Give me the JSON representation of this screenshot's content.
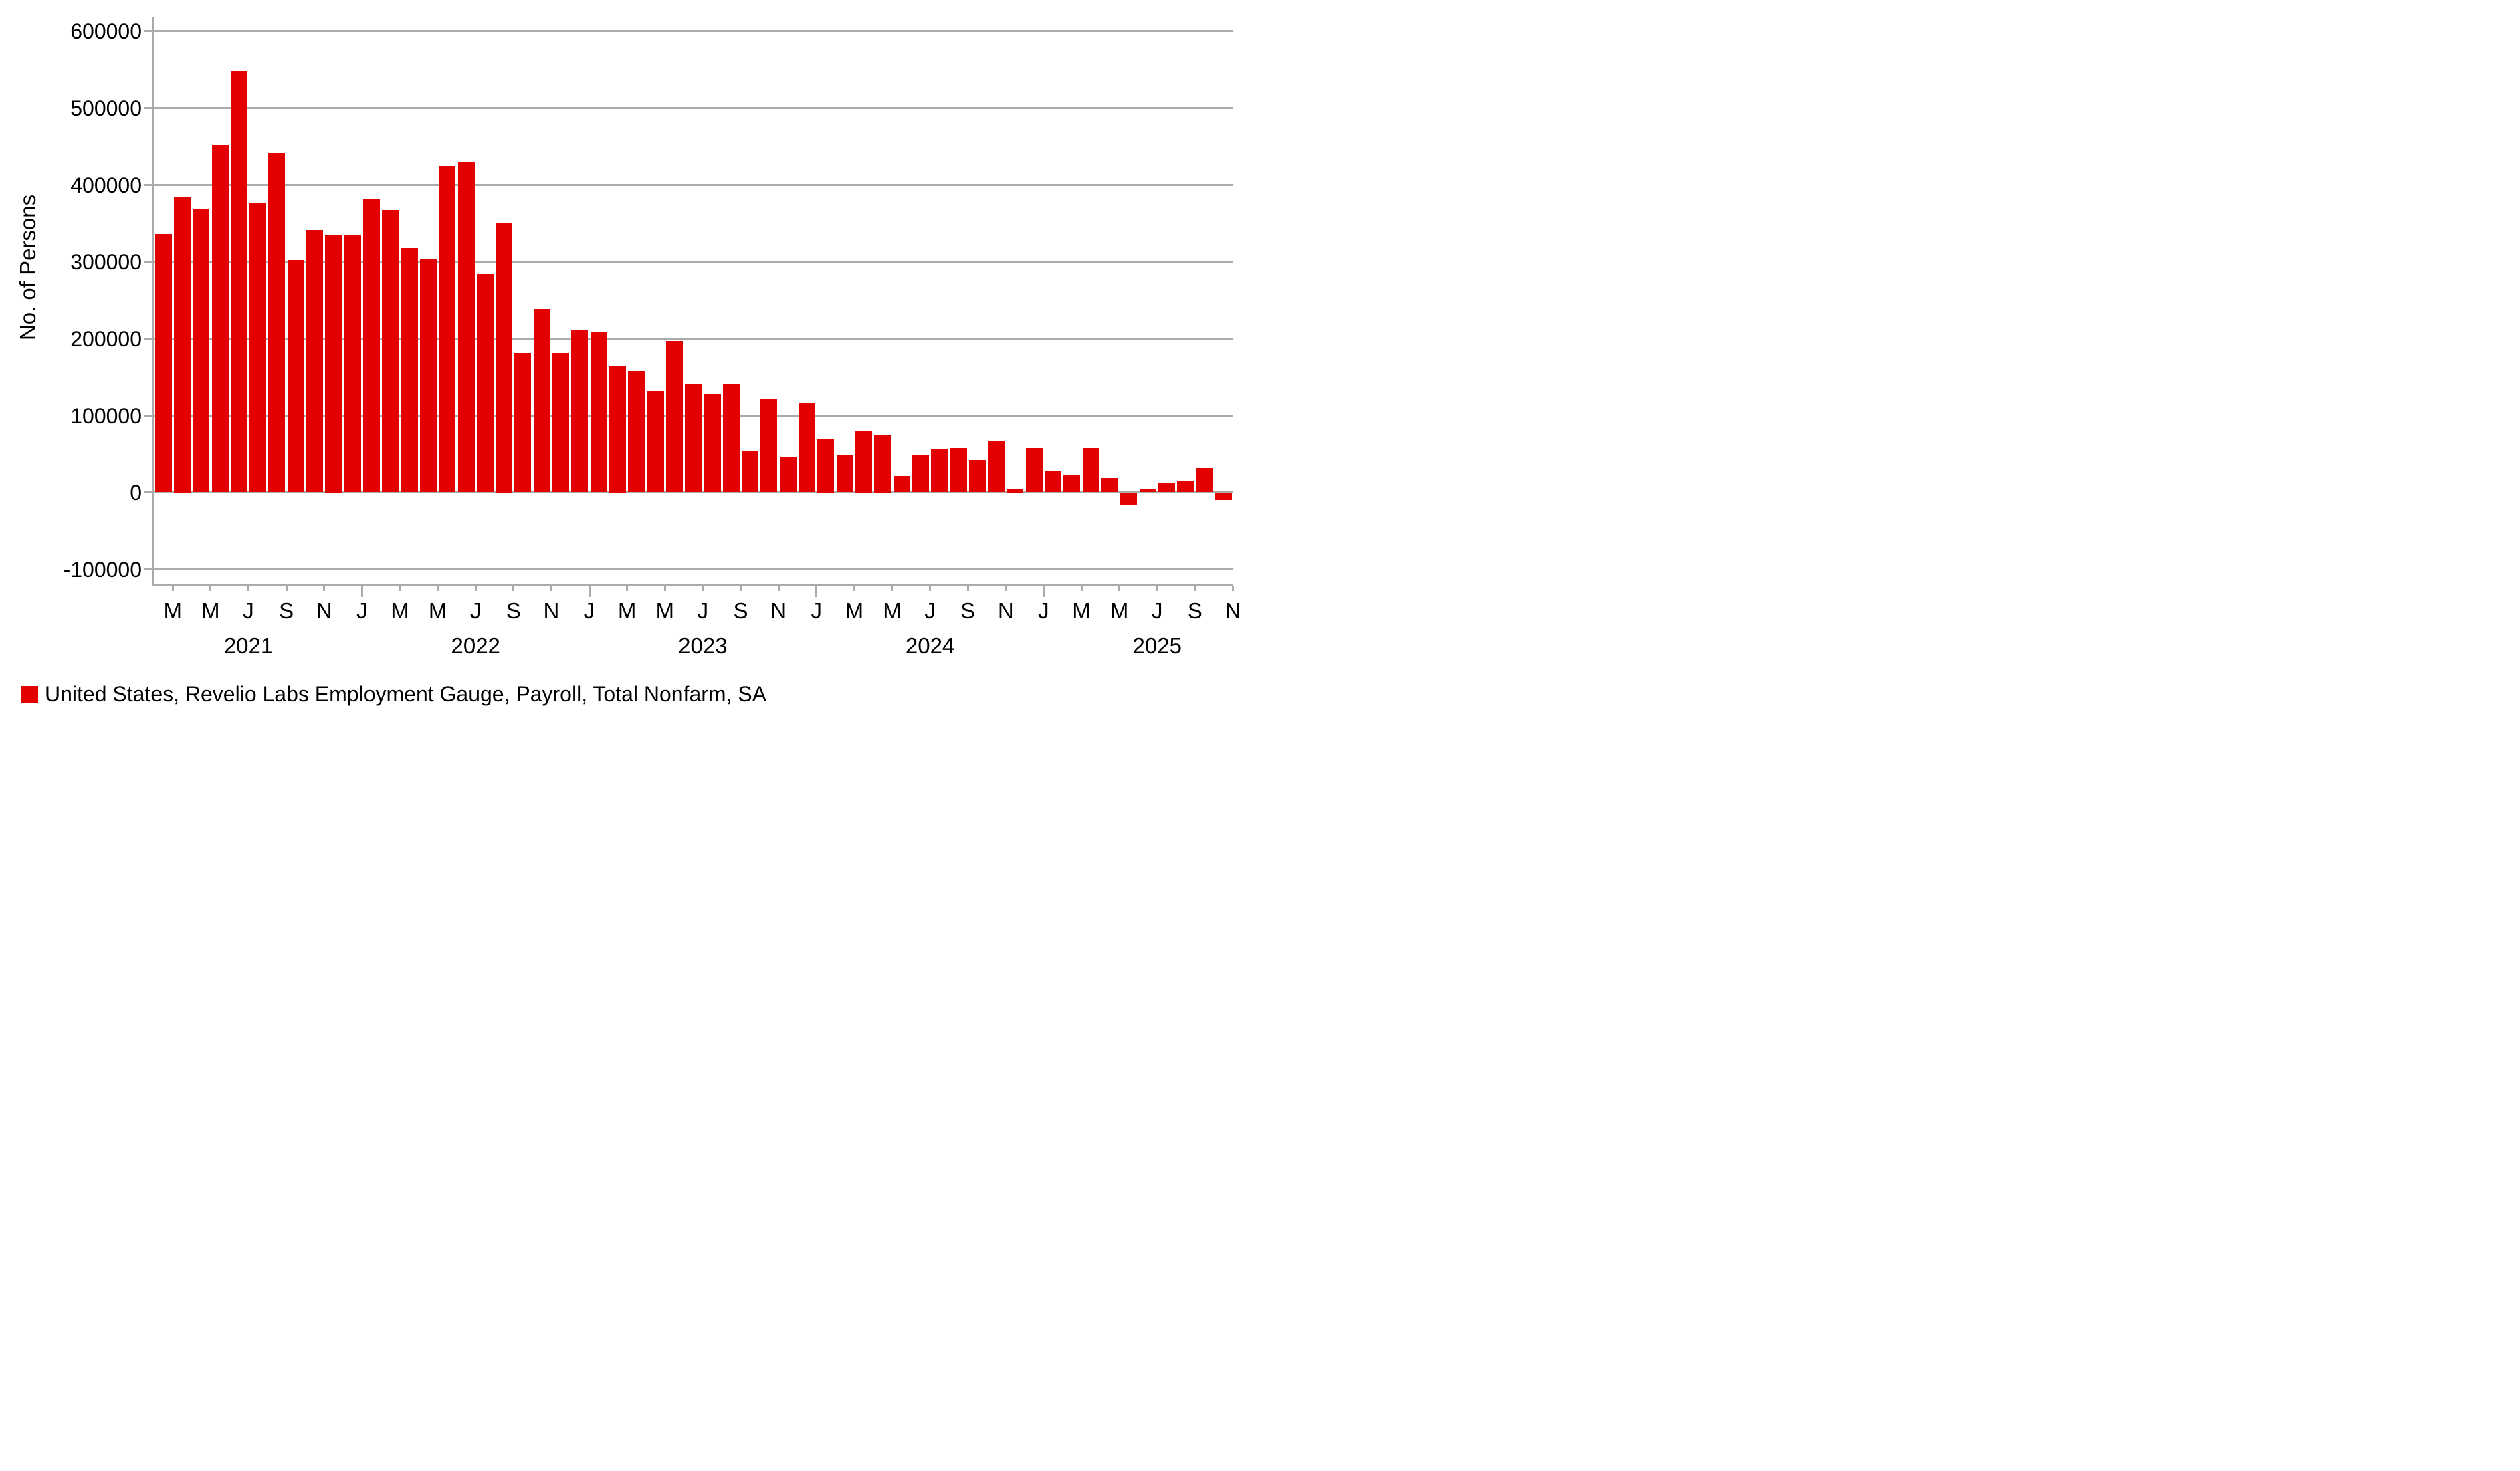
{
  "chart_data": {
    "type": "bar",
    "title": "",
    "ylabel": "No. of Persons",
    "series_name": "United States, Revelio Labs Employment Gauge, Payroll, Total Nonfarm, SA",
    "bar_color": "#e30000",
    "grid_color": "#ababab",
    "text_color": "#000000",
    "grid": true,
    "legend_position": "bottom-left",
    "ylim": [
      -100000,
      620000
    ],
    "yticks": [
      600000,
      500000,
      400000,
      300000,
      200000,
      100000,
      0,
      -100000
    ],
    "x": [
      "Feb 2021",
      "Mar 2021",
      "Apr 2021",
      "May 2021",
      "Jun 2021",
      "Jul 2021",
      "Aug 2021",
      "Sep 2021",
      "Oct 2021",
      "Nov 2021",
      "Dec 2021",
      "Jan 2022",
      "Feb 2022",
      "Mar 2022",
      "Apr 2022",
      "May 2022",
      "Jun 2022",
      "Jul 2022",
      "Aug 2022",
      "Sep 2022",
      "Oct 2022",
      "Nov 2022",
      "Dec 2022",
      "Jan 2023",
      "Feb 2023",
      "Mar 2023",
      "Apr 2023",
      "May 2023",
      "Jun 2023",
      "Jul 2023",
      "Aug 2023",
      "Sep 2023",
      "Oct 2023",
      "Nov 2023",
      "Dec 2023",
      "Jan 2024",
      "Feb 2024",
      "Mar 2024",
      "Apr 2024",
      "May 2024",
      "Jun 2024",
      "Jul 2024",
      "Aug 2024",
      "Sep 2024",
      "Oct 2024",
      "Nov 2024",
      "Dec 2024",
      "Jan 2025",
      "Feb 2025",
      "Mar 2025",
      "Apr 2025",
      "May 2025",
      "Jun 2025",
      "Jul 2025",
      "Aug 2025",
      "Sep 2025",
      "Oct 2025"
    ],
    "values": [
      336000,
      385000,
      369000,
      452000,
      548000,
      376000,
      441000,
      302000,
      341000,
      335000,
      334000,
      381000,
      367000,
      318000,
      304000,
      424000,
      429000,
      284000,
      350000,
      181000,
      239000,
      181000,
      211000,
      209000,
      165000,
      158000,
      132000,
      197000,
      141000,
      127000,
      141000,
      54000,
      122000,
      46000,
      117000,
      70000,
      48000,
      80000,
      75000,
      21000,
      49000,
      57000,
      58000,
      42000,
      67000,
      5000,
      58000,
      28000,
      22000,
      58000,
      19000,
      -16000,
      4000,
      12000,
      14000,
      32000,
      -10000
    ],
    "xticks": [
      {
        "b": 1,
        "label": "M"
      },
      {
        "b": 3,
        "label": "M"
      },
      {
        "b": 5,
        "label": "J"
      },
      {
        "b": 7,
        "label": "S"
      },
      {
        "b": 9,
        "label": "N"
      },
      {
        "b": 11,
        "label": "J",
        "long": true
      },
      {
        "b": 13,
        "label": "M"
      },
      {
        "b": 15,
        "label": "M"
      },
      {
        "b": 17,
        "label": "J"
      },
      {
        "b": 19,
        "label": "S"
      },
      {
        "b": 21,
        "label": "N"
      },
      {
        "b": 23,
        "label": "J",
        "long": true
      },
      {
        "b": 25,
        "label": "M"
      },
      {
        "b": 27,
        "label": "M"
      },
      {
        "b": 29,
        "label": "J"
      },
      {
        "b": 31,
        "label": "S"
      },
      {
        "b": 33,
        "label": "N"
      },
      {
        "b": 35,
        "label": "J",
        "long": true
      },
      {
        "b": 37,
        "label": "M"
      },
      {
        "b": 39,
        "label": "M"
      },
      {
        "b": 41,
        "label": "J"
      },
      {
        "b": 43,
        "label": "S"
      },
      {
        "b": 45,
        "label": "N"
      },
      {
        "b": 47,
        "label": "J",
        "long": true
      },
      {
        "b": 49,
        "label": "M"
      },
      {
        "b": 51,
        "label": "M"
      },
      {
        "b": 53,
        "label": "J"
      },
      {
        "b": 55,
        "label": "S"
      },
      {
        "b": 57,
        "label": "N"
      }
    ],
    "year_labels": [
      {
        "b": 5,
        "label": "2021"
      },
      {
        "b": 17,
        "label": "2022"
      },
      {
        "b": 29,
        "label": "2023"
      },
      {
        "b": 41,
        "label": "2024"
      },
      {
        "b": 53,
        "label": "2025"
      }
    ]
  }
}
